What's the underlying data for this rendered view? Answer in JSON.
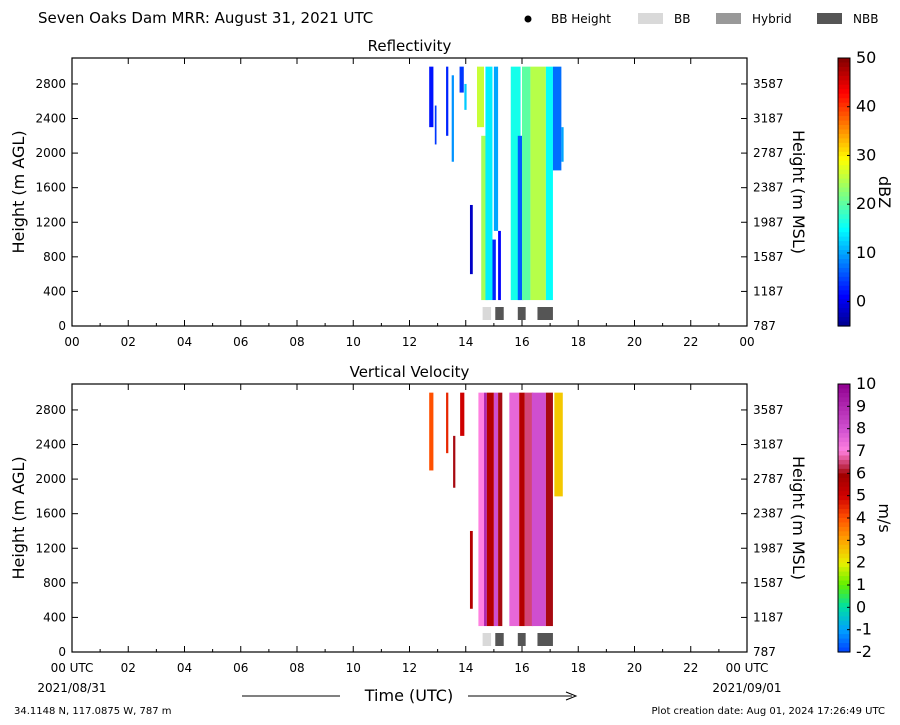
{
  "header": {
    "title": "Seven Oaks Dam MRR:  August 31, 2021 UTC",
    "legend": [
      {
        "label": "BB Height",
        "kind": "dot",
        "color": "#000000"
      },
      {
        "label": "BB",
        "kind": "rect",
        "color": "#d9d9d9"
      },
      {
        "label": "Hybrid",
        "kind": "rect",
        "color": "#999999"
      },
      {
        "label": "NBB",
        "kind": "rect",
        "color": "#555555"
      }
    ]
  },
  "footer": {
    "location": "34.1148 N, 117.0875 W, 787 m",
    "creation": "Plot creation date: Aug 01, 2024 17:26:49 UTC",
    "date_start": "2021/08/31",
    "date_end": "2021/09/01"
  },
  "chart_data": [
    {
      "type": "heatmap",
      "title": "Reflectivity",
      "xlabel": "",
      "ylabel": "Height (m AGL)",
      "ylabel_right": "Height (m MSL)",
      "x_ticks": [
        "00",
        "02",
        "04",
        "06",
        "08",
        "10",
        "12",
        "14",
        "16",
        "18",
        "20",
        "22",
        "00"
      ],
      "xlim": [
        0,
        24
      ],
      "y_ticks": [
        0,
        400,
        800,
        1200,
        1600,
        2000,
        2400,
        2800
      ],
      "y_ticks_right": [
        787,
        1187,
        1587,
        1987,
        2387,
        2787,
        3187,
        3587
      ],
      "ylim": [
        0,
        3100
      ],
      "colorbar": {
        "label": "dBZ",
        "ticks": [
          50,
          40,
          30,
          20,
          10,
          0
        ],
        "range": [
          -5,
          50
        ]
      },
      "bands": [
        {
          "x": 12.7,
          "w": 0.15,
          "y0": 2300,
          "y1": 3000,
          "v": 2
        },
        {
          "x": 12.9,
          "w": 0.06,
          "y0": 2100,
          "y1": 2550,
          "v": 4
        },
        {
          "x": 13.3,
          "w": 0.08,
          "y0": 2200,
          "y1": 3000,
          "v": 3
        },
        {
          "x": 13.5,
          "w": 0.08,
          "y0": 1900,
          "y1": 2900,
          "v": 9
        },
        {
          "x": 13.78,
          "w": 0.15,
          "y0": 2700,
          "y1": 3000,
          "v": 4
        },
        {
          "x": 13.95,
          "w": 0.08,
          "y0": 2500,
          "y1": 2800,
          "v": 12
        },
        {
          "x": 14.15,
          "w": 0.1,
          "y0": 600,
          "y1": 1400,
          "v": -2
        },
        {
          "x": 14.4,
          "w": 0.25,
          "y0": 2300,
          "y1": 3000,
          "v": 26
        },
        {
          "x": 14.55,
          "w": 0.25,
          "y0": 300,
          "y1": 2200,
          "v": 24
        },
        {
          "x": 14.7,
          "w": 0.25,
          "y0": 300,
          "y1": 3000,
          "v": 14
        },
        {
          "x": 14.95,
          "w": 0.12,
          "y0": 300,
          "y1": 1000,
          "v": 3
        },
        {
          "x": 15.0,
          "w": 0.15,
          "y0": 1100,
          "y1": 3000,
          "v": 10
        },
        {
          "x": 15.15,
          "w": 0.1,
          "y0": 300,
          "y1": 1100,
          "v": 1
        },
        {
          "x": 15.6,
          "w": 0.35,
          "y0": 300,
          "y1": 3000,
          "v": 16
        },
        {
          "x": 15.85,
          "w": 0.2,
          "y0": 300,
          "y1": 2200,
          "v": 6
        },
        {
          "x": 16.0,
          "w": 0.3,
          "y0": 300,
          "y1": 3000,
          "v": 20
        },
        {
          "x": 16.3,
          "w": 0.55,
          "y0": 300,
          "y1": 3000,
          "v": 25
        },
        {
          "x": 16.85,
          "w": 0.25,
          "y0": 300,
          "y1": 3000,
          "v": 15
        },
        {
          "x": 17.1,
          "w": 0.3,
          "y0": 1800,
          "y1": 3000,
          "v": 7
        },
        {
          "x": 17.4,
          "w": 0.08,
          "y0": 1900,
          "y1": 2300,
          "v": 10
        }
      ]
    },
    {
      "type": "heatmap",
      "title": "Vertical Velocity",
      "xlabel": "Time (UTC)",
      "ylabel": "Height (m AGL)",
      "ylabel_right": "Height (m MSL)",
      "x_ticks": [
        "00 UTC",
        "02",
        "04",
        "06",
        "08",
        "10",
        "12",
        "14",
        "16",
        "18",
        "20",
        "22",
        "00 UTC"
      ],
      "xlim": [
        0,
        24
      ],
      "y_ticks": [
        0,
        400,
        800,
        1200,
        1600,
        2000,
        2400,
        2800
      ],
      "y_ticks_right": [
        787,
        1187,
        1587,
        1987,
        2387,
        2787,
        3187,
        3587
      ],
      "ylim": [
        0,
        3100
      ],
      "colorbar": {
        "label": "m/s",
        "ticks": [
          10,
          9,
          8,
          7,
          6,
          5,
          4,
          3,
          2,
          1,
          0,
          -1,
          -2
        ],
        "range": [
          -2,
          10
        ]
      },
      "bands": [
        {
          "x": 12.7,
          "w": 0.15,
          "y0": 2100,
          "y1": 3000,
          "v": 4
        },
        {
          "x": 13.3,
          "w": 0.08,
          "y0": 2300,
          "y1": 3000,
          "v": 4.5
        },
        {
          "x": 13.55,
          "w": 0.08,
          "y0": 1900,
          "y1": 2500,
          "v": 6
        },
        {
          "x": 13.8,
          "w": 0.15,
          "y0": 2500,
          "y1": 3000,
          "v": 5
        },
        {
          "x": 14.15,
          "w": 0.1,
          "y0": 500,
          "y1": 1400,
          "v": 5.5
        },
        {
          "x": 14.45,
          "w": 0.2,
          "y0": 300,
          "y1": 3000,
          "v": 7
        },
        {
          "x": 14.65,
          "w": 0.1,
          "y0": 300,
          "y1": 3000,
          "v": 9
        },
        {
          "x": 14.75,
          "w": 0.25,
          "y0": 300,
          "y1": 3000,
          "v": 5.5
        },
        {
          "x": 15.0,
          "w": 0.15,
          "y0": 300,
          "y1": 3000,
          "v": 8
        },
        {
          "x": 15.15,
          "w": 0.15,
          "y0": 300,
          "y1": 3000,
          "v": 6
        },
        {
          "x": 15.55,
          "w": 0.35,
          "y0": 300,
          "y1": 3000,
          "v": 7.5
        },
        {
          "x": 15.9,
          "w": 0.2,
          "y0": 300,
          "y1": 3000,
          "v": 5.5
        },
        {
          "x": 16.1,
          "w": 0.3,
          "y0": 300,
          "y1": 3000,
          "v": 6.5
        },
        {
          "x": 16.35,
          "w": 0.5,
          "y0": 300,
          "y1": 3000,
          "v": 8
        },
        {
          "x": 16.85,
          "w": 0.25,
          "y0": 300,
          "y1": 3000,
          "v": 6
        },
        {
          "x": 17.15,
          "w": 0.3,
          "y0": 1800,
          "y1": 3000,
          "v": 2.5
        }
      ]
    }
  ],
  "bb_markers": [
    {
      "x": 14.6,
      "w": 0.3,
      "type": "BB"
    },
    {
      "x": 15.05,
      "w": 0.3,
      "type": "NBB"
    },
    {
      "x": 15.85,
      "w": 0.28,
      "type": "NBB"
    },
    {
      "x": 16.55,
      "w": 0.55,
      "type": "NBB"
    }
  ]
}
